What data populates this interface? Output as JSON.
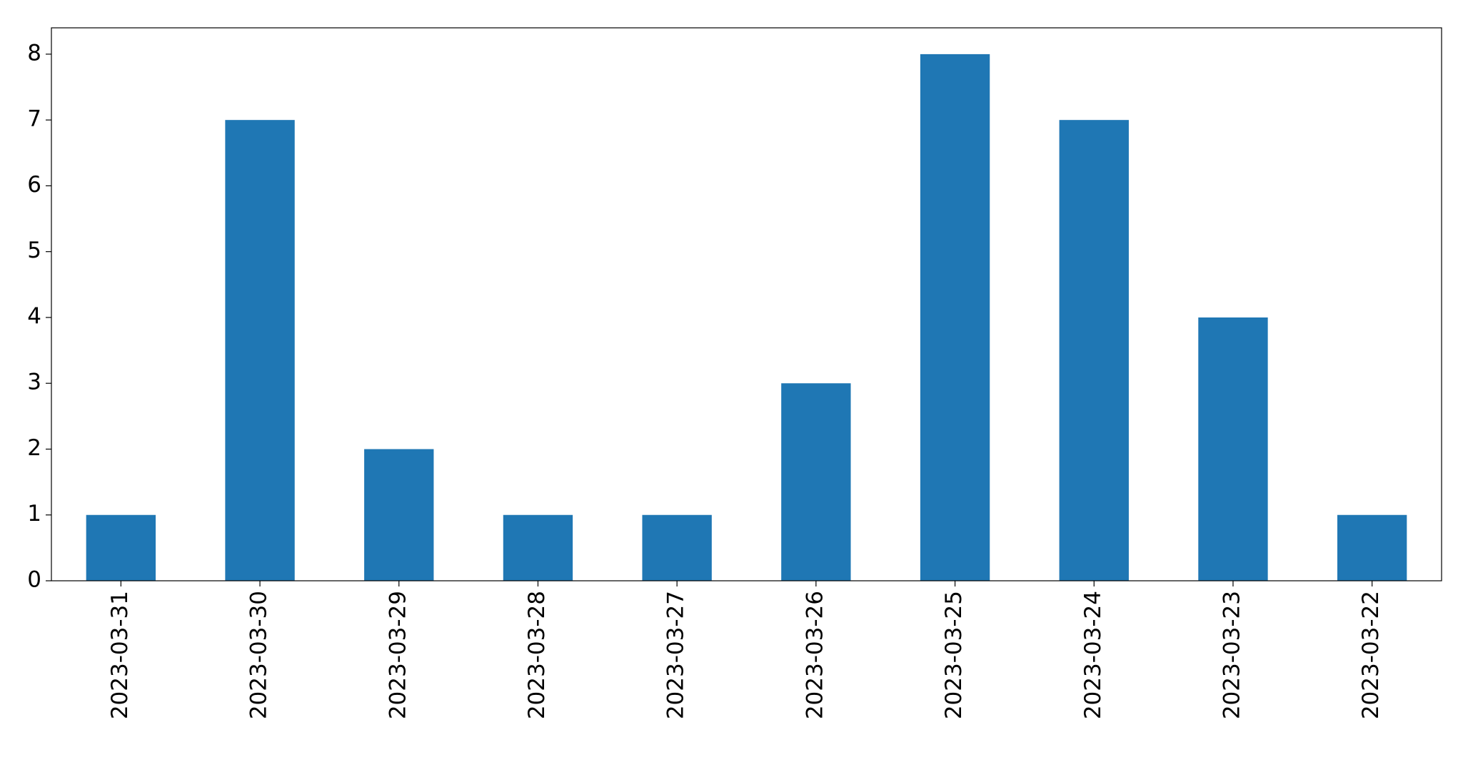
{
  "chart_data": {
    "type": "bar",
    "categories": [
      "2023-03-31",
      "2023-03-30",
      "2023-03-29",
      "2023-03-28",
      "2023-03-27",
      "2023-03-26",
      "2023-03-25",
      "2023-03-24",
      "2023-03-23",
      "2023-03-22"
    ],
    "values": [
      1,
      7,
      2,
      1,
      1,
      3,
      8,
      7,
      4,
      1
    ],
    "color": "#1f77b4",
    "ylim": [
      0,
      8.4
    ],
    "yticks": [
      0,
      1,
      2,
      3,
      4,
      5,
      6,
      7,
      8
    ],
    "grid": false
  }
}
